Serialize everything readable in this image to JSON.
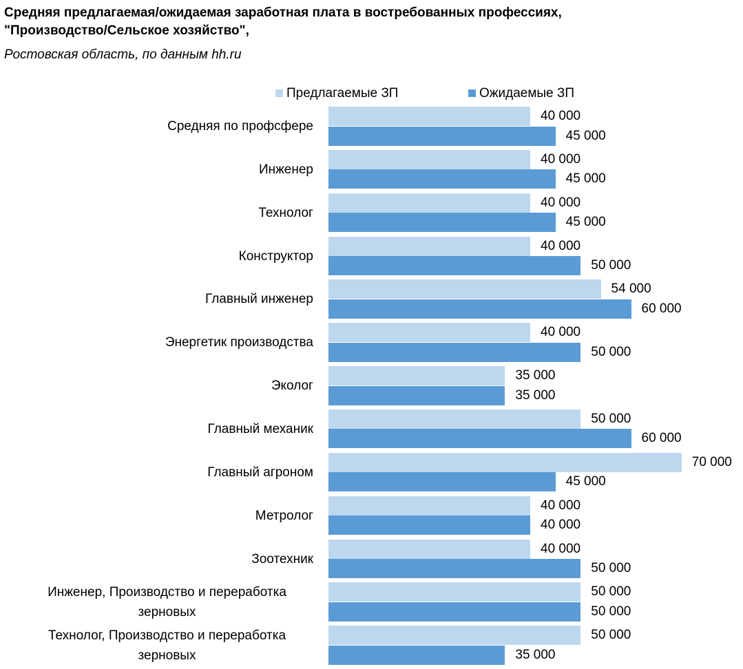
{
  "chart_data": {
    "type": "bar",
    "orientation": "horizontal",
    "title": "Средняя предлагаемая/ожидаемая заработная плата в востребованных профессиях, \"Производство/Сельское хозяйство\",",
    "subtitle": "Ростовская область, по данным hh.ru",
    "categories": [
      "Средняя по профсфере",
      "Инженер",
      "Технолог",
      "Конструктор",
      "Главный инженер",
      "Энергетик производства",
      "Эколог",
      "Главный механик",
      "Главный агроном",
      "Метролог",
      "Зоотехник",
      "Инженер, Производство и переработка зерновых",
      "Технолог, Производство и переработка зерновых"
    ],
    "series": [
      {
        "name": "Предлагаемые ЗП",
        "color": "#bdd7ee",
        "values": [
          40000,
          40000,
          40000,
          40000,
          54000,
          40000,
          35000,
          50000,
          70000,
          40000,
          40000,
          50000,
          50000
        ],
        "value_labels": [
          "40 000",
          "40 000",
          "40 000",
          "40 000",
          "54 000",
          "40 000",
          "35 000",
          "50 000",
          "70 000",
          "40 000",
          "40 000",
          "50 000",
          "50 000"
        ]
      },
      {
        "name": "Ожидаемые ЗП",
        "color": "#5b9bd5",
        "values": [
          45000,
          45000,
          45000,
          50000,
          60000,
          50000,
          35000,
          60000,
          45000,
          40000,
          50000,
          50000,
          35000
        ],
        "value_labels": [
          "45 000",
          "45 000",
          "45 000",
          "50 000",
          "60 000",
          "50 000",
          "35 000",
          "60 000",
          "45 000",
          "40 000",
          "50 000",
          "50 000",
          "35 000"
        ]
      }
    ],
    "legend": "top"
  }
}
